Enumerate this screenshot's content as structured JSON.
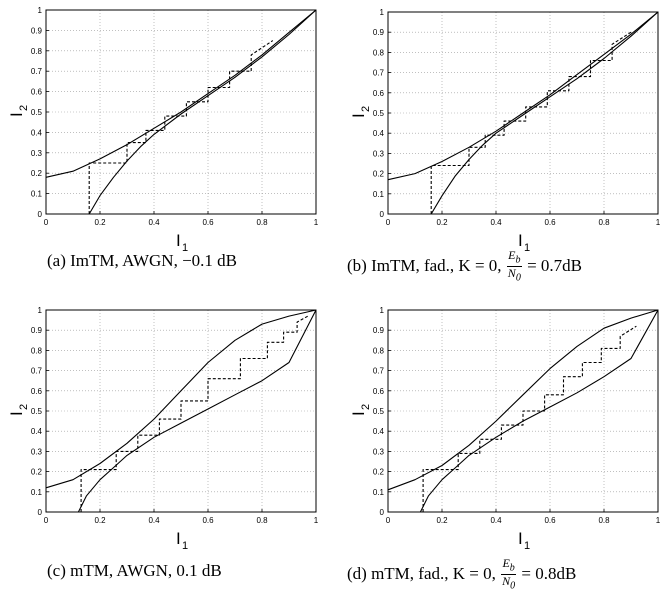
{
  "chart_data": [
    {
      "type": "line",
      "caption": {
        "tag": "(a)",
        "text": "ImTM, AWGN, −0.1 dB"
      },
      "xlabel": "I",
      "xlabel_sub": "1",
      "ylabel": "I",
      "ylabel_sub": "2",
      "xlim": [
        0,
        1
      ],
      "ylim": [
        0,
        1
      ],
      "grid": true,
      "xticks": [
        "0",
        "0.2",
        "0.4",
        "0.6",
        "0.8",
        "1"
      ],
      "yticks": [
        "0",
        "0.1",
        "0.2",
        "0.3",
        "0.4",
        "0.5",
        "0.6",
        "0.7",
        "0.8",
        "0.9",
        "1"
      ],
      "series": [
        {
          "style": "solid",
          "x": [
            0,
            0.1,
            0.2,
            0.3,
            0.4,
            0.5,
            0.6,
            0.7,
            0.8,
            0.9,
            1
          ],
          "y": [
            0.18,
            0.21,
            0.27,
            0.34,
            0.42,
            0.5,
            0.59,
            0.68,
            0.78,
            0.89,
            1
          ]
        },
        {
          "style": "solid",
          "x": [
            0.16,
            0.2,
            0.25,
            0.3,
            0.35,
            0.4,
            0.5,
            0.6,
            0.7,
            0.8,
            0.9,
            1
          ],
          "y": [
            0,
            0.09,
            0.18,
            0.26,
            0.33,
            0.39,
            0.49,
            0.58,
            0.67,
            0.77,
            0.88,
            1
          ]
        },
        {
          "style": "dashed",
          "x": [
            0.16,
            0.16,
            0.3,
            0.3,
            0.37,
            0.37,
            0.44,
            0.44,
            0.52,
            0.52,
            0.6,
            0.6,
            0.68,
            0.68,
            0.76,
            0.76,
            0.84
          ],
          "y": [
            0,
            0.25,
            0.25,
            0.35,
            0.35,
            0.41,
            0.41,
            0.48,
            0.48,
            0.55,
            0.55,
            0.62,
            0.62,
            0.7,
            0.7,
            0.78,
            0.85
          ]
        }
      ]
    },
    {
      "type": "line",
      "caption": {
        "tag": "(b)",
        "text": "ImTM, fad., K = 0,",
        "frac_num": "E",
        "frac_num_sub": "b",
        "frac_den": "N",
        "frac_den_sub": "0",
        "suffix": "= 0.7dB"
      },
      "xlabel": "I",
      "xlabel_sub": "1",
      "ylabel": "I",
      "ylabel_sub": "2",
      "xlim": [
        0,
        1
      ],
      "ylim": [
        0,
        1
      ],
      "grid": true,
      "xticks": [
        "0",
        "0.2",
        "0.4",
        "0.6",
        "0.8",
        "1"
      ],
      "yticks": [
        "0",
        "0.1",
        "0.2",
        "0.3",
        "0.4",
        "0.5",
        "0.6",
        "0.7",
        "0.8",
        "0.9",
        "1"
      ],
      "series": [
        {
          "style": "solid",
          "x": [
            0,
            0.1,
            0.2,
            0.3,
            0.4,
            0.5,
            0.6,
            0.7,
            0.8,
            0.9,
            1
          ],
          "y": [
            0.17,
            0.2,
            0.26,
            0.33,
            0.41,
            0.5,
            0.59,
            0.69,
            0.79,
            0.89,
            1
          ]
        },
        {
          "style": "solid",
          "x": [
            0.16,
            0.2,
            0.25,
            0.3,
            0.35,
            0.4,
            0.5,
            0.6,
            0.7,
            0.8,
            0.9,
            1
          ],
          "y": [
            0,
            0.09,
            0.19,
            0.27,
            0.34,
            0.4,
            0.49,
            0.58,
            0.67,
            0.77,
            0.88,
            1
          ]
        },
        {
          "style": "dashed",
          "x": [
            0.16,
            0.16,
            0.3,
            0.3,
            0.36,
            0.36,
            0.43,
            0.43,
            0.51,
            0.51,
            0.59,
            0.59,
            0.67,
            0.67,
            0.75,
            0.75,
            0.83,
            0.83,
            0.9
          ],
          "y": [
            0,
            0.24,
            0.24,
            0.33,
            0.33,
            0.39,
            0.39,
            0.46,
            0.46,
            0.53,
            0.53,
            0.61,
            0.61,
            0.68,
            0.68,
            0.76,
            0.76,
            0.84,
            0.9
          ]
        }
      ]
    },
    {
      "type": "line",
      "caption": {
        "tag": "(c)",
        "text": "mTM, AWGN, 0.1 dB"
      },
      "xlabel": "I",
      "xlabel_sub": "1",
      "ylabel": "I",
      "ylabel_sub": "2",
      "xlim": [
        0,
        1
      ],
      "ylim": [
        0,
        1
      ],
      "grid": true,
      "xticks": [
        "0",
        "0.2",
        "0.4",
        "0.6",
        "0.8",
        "1"
      ],
      "yticks": [
        "0",
        "0.1",
        "0.2",
        "0.3",
        "0.4",
        "0.5",
        "0.6",
        "0.7",
        "0.8",
        "0.9",
        "1"
      ],
      "series": [
        {
          "style": "solid",
          "x": [
            0,
            0.1,
            0.2,
            0.3,
            0.4,
            0.5,
            0.6,
            0.7,
            0.8,
            0.9,
            1
          ],
          "y": [
            0.12,
            0.16,
            0.24,
            0.34,
            0.46,
            0.6,
            0.74,
            0.85,
            0.93,
            0.97,
            1
          ]
        },
        {
          "style": "solid",
          "x": [
            0.12,
            0.15,
            0.2,
            0.25,
            0.3,
            0.4,
            0.5,
            0.6,
            0.7,
            0.8,
            0.9,
            1
          ],
          "y": [
            0,
            0.08,
            0.16,
            0.22,
            0.28,
            0.37,
            0.44,
            0.51,
            0.58,
            0.65,
            0.74,
            1
          ]
        },
        {
          "style": "dashed",
          "x": [
            0.13,
            0.13,
            0.26,
            0.26,
            0.34,
            0.34,
            0.42,
            0.42,
            0.5,
            0.5,
            0.6,
            0.6,
            0.72,
            0.72,
            0.82,
            0.82,
            0.88,
            0.88,
            0.93,
            0.93,
            0.97
          ],
          "y": [
            0,
            0.21,
            0.21,
            0.3,
            0.3,
            0.38,
            0.38,
            0.46,
            0.46,
            0.55,
            0.55,
            0.66,
            0.66,
            0.76,
            0.76,
            0.84,
            0.84,
            0.89,
            0.89,
            0.94,
            0.97
          ]
        }
      ]
    },
    {
      "type": "line",
      "caption": {
        "tag": "(d)",
        "text": "mTM, fad., K = 0,",
        "frac_num": "E",
        "frac_num_sub": "b",
        "frac_den": "N",
        "frac_den_sub": "0",
        "suffix": "= 0.8dB"
      },
      "xlabel": "I",
      "xlabel_sub": "1",
      "ylabel": "I",
      "ylabel_sub": "2",
      "xlim": [
        0,
        1
      ],
      "ylim": [
        0,
        1
      ],
      "grid": true,
      "xticks": [
        "0",
        "0.2",
        "0.4",
        "0.6",
        "0.8",
        "1"
      ],
      "yticks": [
        "0",
        "0.1",
        "0.2",
        "0.3",
        "0.4",
        "0.5",
        "0.6",
        "0.7",
        "0.8",
        "0.9",
        "1"
      ],
      "series": [
        {
          "style": "solid",
          "x": [
            0,
            0.1,
            0.2,
            0.3,
            0.4,
            0.5,
            0.6,
            0.7,
            0.8,
            0.9,
            1
          ],
          "y": [
            0.11,
            0.16,
            0.23,
            0.33,
            0.45,
            0.58,
            0.71,
            0.82,
            0.91,
            0.96,
            1
          ]
        },
        {
          "style": "solid",
          "x": [
            0.12,
            0.15,
            0.2,
            0.25,
            0.3,
            0.4,
            0.5,
            0.6,
            0.7,
            0.8,
            0.9,
            1
          ],
          "y": [
            0,
            0.08,
            0.16,
            0.22,
            0.28,
            0.37,
            0.45,
            0.52,
            0.59,
            0.67,
            0.76,
            1
          ]
        },
        {
          "style": "dashed",
          "x": [
            0.13,
            0.13,
            0.26,
            0.26,
            0.34,
            0.34,
            0.42,
            0.42,
            0.5,
            0.5,
            0.58,
            0.58,
            0.65,
            0.65,
            0.72,
            0.72,
            0.79,
            0.79,
            0.86,
            0.86,
            0.92
          ],
          "y": [
            0,
            0.21,
            0.21,
            0.29,
            0.29,
            0.36,
            0.36,
            0.43,
            0.43,
            0.5,
            0.5,
            0.58,
            0.58,
            0.67,
            0.67,
            0.74,
            0.74,
            0.81,
            0.81,
            0.87,
            0.92
          ]
        }
      ]
    }
  ]
}
